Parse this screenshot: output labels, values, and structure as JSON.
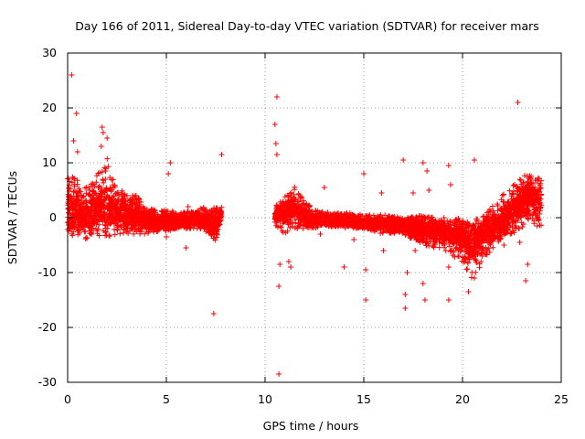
{
  "chart_data": {
    "type": "scatter",
    "title": "Day 166 of 2011, Sidereal Day-to-day VTEC variation (SDTVAR) for receiver mars",
    "xlabel": "GPS time / hours",
    "ylabel": "SDTVAR / TECUs",
    "xlim": [
      0,
      25
    ],
    "ylim": [
      -30,
      30
    ],
    "x_ticks": [
      0,
      5,
      10,
      15,
      20,
      25
    ],
    "y_ticks": [
      -30,
      -20,
      -10,
      0,
      10,
      20,
      30
    ],
    "x_tick_labels": [
      "0",
      "5",
      "10",
      "15",
      "20",
      "25"
    ],
    "y_tick_labels": [
      "-30",
      "-20",
      "-10",
      "0",
      "10",
      "20",
      "30"
    ],
    "grid": true,
    "marker": "+",
    "marker_color": "#ff0000",
    "bands": [
      {
        "name": "arc-0-7.8h",
        "x": [
          0.0,
          0.5,
          1.0,
          1.5,
          2.0,
          2.5,
          3.0,
          3.5,
          4.0,
          4.5,
          5.0,
          5.5,
          6.0,
          6.5,
          7.0,
          7.5,
          7.8
        ],
        "mid": [
          1.0,
          0.8,
          0.5,
          1.5,
          2.0,
          0.8,
          0.5,
          0.3,
          -0.2,
          -0.5,
          -0.5,
          -0.5,
          -0.5,
          -0.5,
          -1.0,
          -1.5,
          1.0
        ],
        "lo": [
          -4.5,
          -4.0,
          -4.0,
          -3.5,
          -3.5,
          -3.0,
          -3.0,
          -3.0,
          -3.0,
          -2.5,
          -2.5,
          -2.0,
          -2.0,
          -2.0,
          -2.5,
          -4.5,
          0.0
        ],
        "hi": [
          8.0,
          7.0,
          5.5,
          8.0,
          11.0,
          5.0,
          5.0,
          4.0,
          2.0,
          1.5,
          1.5,
          1.0,
          1.0,
          1.5,
          2.0,
          2.0,
          2.0
        ]
      },
      {
        "name": "arc-10.5-24h",
        "x": [
          10.5,
          11.0,
          11.5,
          12.0,
          12.5,
          13.0,
          14.0,
          15.0,
          16.0,
          17.0,
          18.0,
          19.0,
          20.0,
          20.5,
          21.0,
          21.5,
          22.0,
          22.5,
          23.0,
          23.5,
          24.0
        ],
        "mid": [
          0.5,
          1.0,
          2.0,
          0.0,
          -0.5,
          -0.5,
          -0.5,
          -1.0,
          -1.0,
          -1.5,
          -2.0,
          -2.5,
          -3.0,
          -5.0,
          -3.0,
          -2.0,
          -1.0,
          1.0,
          3.0,
          4.0,
          3.0
        ],
        "lo": [
          -2.0,
          -3.0,
          -2.0,
          -2.0,
          -2.0,
          -1.5,
          -2.0,
          -2.0,
          -3.0,
          -3.0,
          -5.0,
          -6.0,
          -8.0,
          -12.0,
          -8.0,
          -6.0,
          -4.0,
          -3.0,
          -2.0,
          -1.0,
          -3.0
        ],
        "hi": [
          2.0,
          4.0,
          6.0,
          3.0,
          1.5,
          1.0,
          1.0,
          0.5,
          0.5,
          0.0,
          0.5,
          0.0,
          0.0,
          -1.0,
          1.0,
          2.0,
          4.0,
          6.0,
          7.5,
          8.0,
          7.0
        ]
      }
    ],
    "outliers": [
      {
        "x": 0.2,
        "y": 26.0
      },
      {
        "x": 0.45,
        "y": 19.0
      },
      {
        "x": 0.3,
        "y": 14.0
      },
      {
        "x": 0.5,
        "y": 12.0
      },
      {
        "x": 1.75,
        "y": 16.5
      },
      {
        "x": 1.8,
        "y": 15.5
      },
      {
        "x": 1.7,
        "y": 13.0
      },
      {
        "x": 2.0,
        "y": 14.5
      },
      {
        "x": 5.2,
        "y": 10.0
      },
      {
        "x": 5.1,
        "y": 8.0
      },
      {
        "x": 5.0,
        "y": -3.5
      },
      {
        "x": 6.0,
        "y": -5.5
      },
      {
        "x": 6.1,
        "y": 2.0
      },
      {
        "x": 7.8,
        "y": 11.5
      },
      {
        "x": 7.4,
        "y": -17.5
      },
      {
        "x": 10.6,
        "y": 22.0
      },
      {
        "x": 10.5,
        "y": 17.0
      },
      {
        "x": 10.55,
        "y": 13.5
      },
      {
        "x": 10.6,
        "y": 11.5
      },
      {
        "x": 10.7,
        "y": -28.5
      },
      {
        "x": 10.7,
        "y": -12.5
      },
      {
        "x": 10.75,
        "y": -8.5
      },
      {
        "x": 11.2,
        "y": -8.0
      },
      {
        "x": 11.3,
        "y": -9.0
      },
      {
        "x": 11.8,
        "y": -1.5
      },
      {
        "x": 12.8,
        "y": -3.0
      },
      {
        "x": 13.0,
        "y": 5.5
      },
      {
        "x": 14.0,
        "y": -9.0
      },
      {
        "x": 14.5,
        "y": -4.0
      },
      {
        "x": 15.0,
        "y": 8.0
      },
      {
        "x": 15.1,
        "y": -9.5
      },
      {
        "x": 15.1,
        "y": -15.0
      },
      {
        "x": 15.9,
        "y": 4.5
      },
      {
        "x": 16.0,
        "y": -6.0
      },
      {
        "x": 17.0,
        "y": 10.5
      },
      {
        "x": 17.1,
        "y": -14.0
      },
      {
        "x": 17.1,
        "y": -16.5
      },
      {
        "x": 17.2,
        "y": -10.0
      },
      {
        "x": 17.5,
        "y": 4.5
      },
      {
        "x": 17.6,
        "y": -6.0
      },
      {
        "x": 18.0,
        "y": 10.0
      },
      {
        "x": 18.2,
        "y": 8.5
      },
      {
        "x": 18.0,
        "y": -12.0
      },
      {
        "x": 18.1,
        "y": -15.0
      },
      {
        "x": 18.3,
        "y": 5.0
      },
      {
        "x": 19.3,
        "y": 9.5
      },
      {
        "x": 19.4,
        "y": 6.0
      },
      {
        "x": 19.3,
        "y": -15.0
      },
      {
        "x": 19.3,
        "y": -9.0
      },
      {
        "x": 20.6,
        "y": 10.5
      },
      {
        "x": 20.3,
        "y": -13.5
      },
      {
        "x": 20.6,
        "y": -11.0
      },
      {
        "x": 21.0,
        "y": -7.0
      },
      {
        "x": 22.1,
        "y": -5.0
      },
      {
        "x": 22.8,
        "y": 21.0
      },
      {
        "x": 22.9,
        "y": -4.5
      },
      {
        "x": 23.2,
        "y": -11.5
      },
      {
        "x": 23.3,
        "y": -8.5
      }
    ]
  }
}
